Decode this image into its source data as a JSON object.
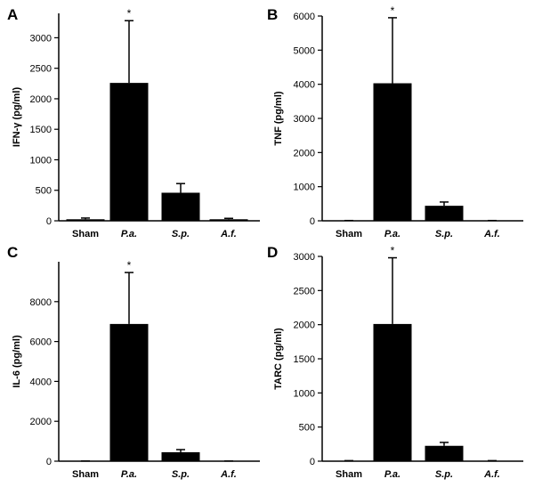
{
  "chart_data": [
    {
      "type": "bar",
      "panel": "A",
      "ylabel": "IFN-γ  (pg/ml)",
      "categories": [
        "Sham",
        "P.a.",
        "S.p.",
        "A.f."
      ],
      "italic_categories": [
        false,
        true,
        true,
        true
      ],
      "values": [
        25,
        2260,
        460,
        25
      ],
      "errors": [
        20,
        1020,
        150,
        15
      ],
      "significance": [
        "",
        "*",
        "",
        ""
      ],
      "ylim": [
        0,
        3400
      ],
      "yticks": [
        0,
        500,
        1000,
        1500,
        2000,
        2500,
        3000
      ]
    },
    {
      "type": "bar",
      "panel": "B",
      "ylabel": "TNF  (pg/ml)",
      "categories": [
        "Sham",
        "P.a.",
        "S.p.",
        "A.f."
      ],
      "italic_categories": [
        false,
        true,
        true,
        true
      ],
      "values": [
        5,
        4030,
        440,
        5
      ],
      "errors": [
        3,
        1920,
        110,
        3
      ],
      "significance": [
        "",
        "*",
        "",
        ""
      ],
      "ylim": [
        0,
        6000
      ],
      "yticks": [
        0,
        1000,
        2000,
        3000,
        4000,
        5000,
        6000
      ]
    },
    {
      "type": "bar",
      "panel": "C",
      "ylabel": "IL-6 (pg/ml)",
      "categories": [
        "Sham",
        "P.a.",
        "S.p.",
        "A.f."
      ],
      "italic_categories": [
        false,
        true,
        true,
        true
      ],
      "values": [
        5,
        6880,
        450,
        5
      ],
      "errors": [
        3,
        2580,
        130,
        3
      ],
      "significance": [
        "",
        "*",
        "",
        ""
      ],
      "ylim": [
        0,
        10000
      ],
      "yticks": [
        0,
        2000,
        4000,
        6000,
        8000
      ]
    },
    {
      "type": "bar",
      "panel": "D",
      "ylabel": "TARC (pg/ml)",
      "categories": [
        "Sham",
        "P.a.",
        "S.p.",
        "A.f."
      ],
      "italic_categories": [
        false,
        true,
        true,
        true
      ],
      "values": [
        5,
        2010,
        225,
        5
      ],
      "errors": [
        3,
        970,
        50,
        3
      ],
      "significance": [
        "",
        "*",
        "",
        ""
      ],
      "ylim": [
        0,
        3000
      ],
      "yticks": [
        0,
        500,
        1000,
        1500,
        2000,
        2500,
        3000
      ]
    }
  ]
}
